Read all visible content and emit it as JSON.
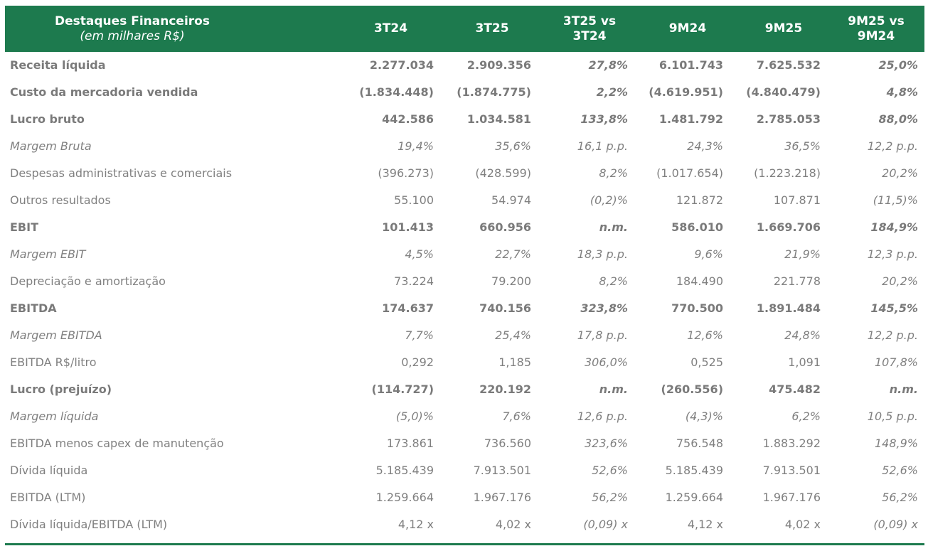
{
  "header": {
    "title": "Destaques Financeiros",
    "subtitle": "(em milhares R$)",
    "columns": [
      "3T24",
      "3T25",
      "3T25 vs 3T24",
      "9M24",
      "9M25",
      "9M25 vs 9M24"
    ]
  },
  "rows": [
    {
      "label": "Receita líquida",
      "values": [
        "2.277.034",
        "2.909.356",
        "27,8%",
        "6.101.743",
        "7.625.532",
        "25,0%"
      ]
    },
    {
      "label": "Custo da mercadoria vendida",
      "values": [
        "(1.834.448)",
        "(1.874.775)",
        "2,2%",
        "(4.619.951)",
        "(4.840.479)",
        "4,8%"
      ]
    },
    {
      "label": "Lucro bruto",
      "values": [
        "442.586",
        "1.034.581",
        "133,8%",
        "1.481.792",
        "2.785.053",
        "88,0%"
      ]
    },
    {
      "label": "Margem Bruta",
      "values": [
        "19,4%",
        "35,6%",
        "16,1 p.p.",
        "24,3%",
        "36,5%",
        "12,2 p.p."
      ]
    },
    {
      "label": "Despesas administrativas e comerciais",
      "values": [
        "(396.273)",
        "(428.599)",
        "8,2%",
        "(1.017.654)",
        "(1.223.218)",
        "20,2%"
      ]
    },
    {
      "label": "Outros resultados",
      "values": [
        "55.100",
        "54.974",
        "(0,2)%",
        "121.872",
        "107.871",
        "(11,5)%"
      ]
    },
    {
      "label": "EBIT",
      "values": [
        "101.413",
        "660.956",
        "n.m.",
        "586.010",
        "1.669.706",
        "184,9%"
      ]
    },
    {
      "label": "Margem EBIT",
      "values": [
        "4,5%",
        "22,7%",
        "18,3 p.p.",
        "9,6%",
        "21,9%",
        "12,3 p.p."
      ]
    },
    {
      "label": "Depreciação e amortização",
      "values": [
        "73.224",
        "79.200",
        "8,2%",
        "184.490",
        "221.778",
        "20,2%"
      ]
    },
    {
      "label": "EBITDA",
      "values": [
        "174.637",
        "740.156",
        "323,8%",
        "770.500",
        "1.891.484",
        "145,5%"
      ]
    },
    {
      "label": "Margem EBITDA",
      "values": [
        "7,7%",
        "25,4%",
        "17,8 p.p.",
        "12,6%",
        "24,8%",
        "12,2 p.p."
      ]
    },
    {
      "label": "EBITDA R$/litro",
      "values": [
        "0,292",
        "1,185",
        "306,0%",
        "0,525",
        "1,091",
        "107,8%"
      ]
    },
    {
      "label": "Lucro (prejuízo)",
      "values": [
        "(114.727)",
        "220.192",
        "n.m.",
        "(260.556)",
        "475.482",
        "n.m."
      ]
    },
    {
      "label": "Margem líquida",
      "values": [
        "(5,0)%",
        "7,6%",
        "12,6 p.p.",
        "(4,3)%",
        "6,2%",
        "10,5 p.p."
      ]
    },
    {
      "label": "EBITDA menos capex de manutenção",
      "values": [
        "173.861",
        "736.560",
        "323,6%",
        "756.548",
        "1.883.292",
        "148,9%"
      ]
    },
    {
      "label": "Dívida líquida",
      "values": [
        "5.185.439",
        "7.913.501",
        "52,6%",
        "5.185.439",
        "7.913.501",
        "52,6%"
      ]
    },
    {
      "label": "EBITDA (LTM)",
      "values": [
        "1.259.664",
        "1.967.176",
        "56,2%",
        "1.259.664",
        "1.967.176",
        "56,2%"
      ]
    },
    {
      "label": "Dívida líquida/EBITDA (LTM)",
      "values": [
        "4,12 x",
        "4,02 x",
        "(0,09) x",
        "4,12 x",
        "4,02 x",
        "(0,09) x"
      ]
    }
  ],
  "colors": {
    "header_bg": "#1d7a4e",
    "header_text": "#ffffff",
    "body_text": "#808080"
  }
}
